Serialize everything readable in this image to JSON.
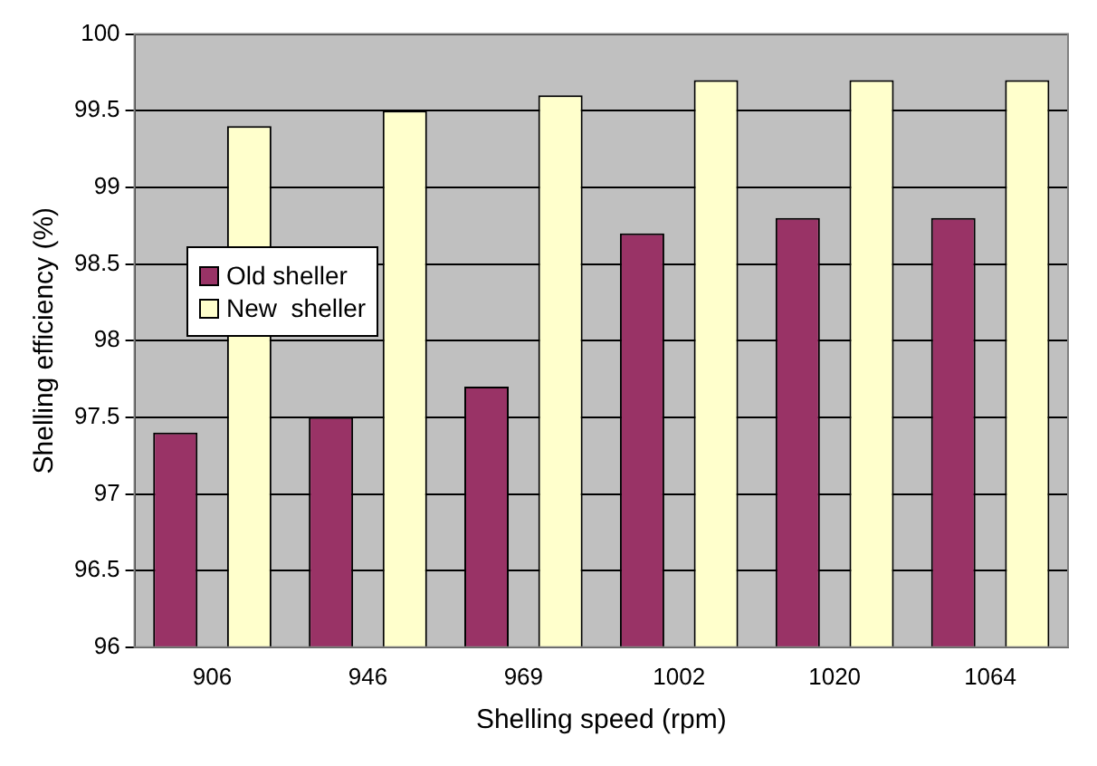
{
  "chart_data": {
    "type": "bar",
    "xlabel": "Shelling speed (rpm)",
    "ylabel": "Shelling efficiency (%)",
    "categories": [
      "906",
      "946",
      "969",
      "1002",
      "1020",
      "1064"
    ],
    "series": [
      {
        "name": "Old sheller",
        "color": "#993366",
        "values": [
          97.4,
          97.5,
          97.7,
          98.7,
          98.8,
          98.8
        ]
      },
      {
        "name": "New  sheller",
        "color": "#ffffcc",
        "values": [
          99.4,
          99.5,
          99.6,
          99.7,
          99.7,
          99.7
        ]
      }
    ],
    "ylim": [
      96,
      100
    ],
    "yticks": [
      96,
      96.5,
      97,
      97.5,
      98,
      98.5,
      99,
      99.5,
      100
    ],
    "grid": "y",
    "legend": "left"
  }
}
